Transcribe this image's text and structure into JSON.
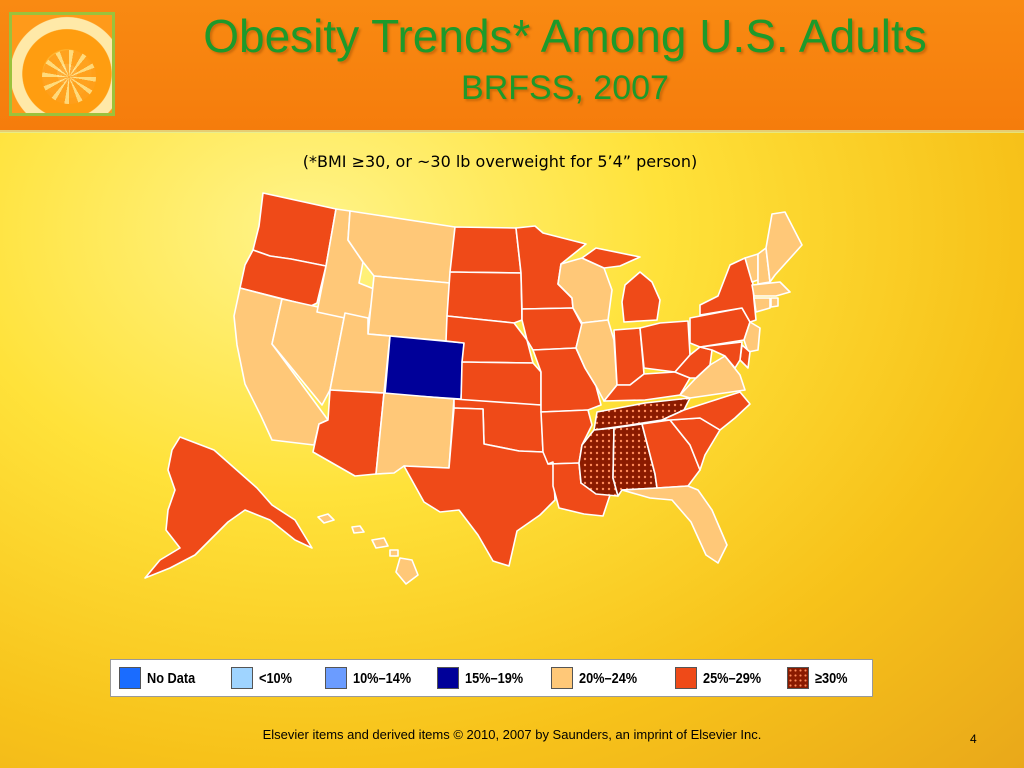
{
  "slide": {
    "title": "Obesity Trends* Among U.S. Adults",
    "subtitle": "BRFSS, 2007",
    "note": "(*BMI ≥30, or ~30 lb overweight for 5’4” person)",
    "footer": "Elsevier items and derived items © 2010, 2007 by Saunders, an imprint of Elsevier Inc.",
    "page_number": "4"
  },
  "colors": {
    "no_data": "#1a6cff",
    "lt10": "#9fd4ff",
    "c10_14": "#6b9cff",
    "c15_19": "#000099",
    "c20_24": "#ffc878",
    "c25_29": "#ef4a18",
    "ge30": "#8a1a00",
    "ge30_dot": "#ff8a5a",
    "border": "#ffffff"
  },
  "legend": [
    {
      "key": "no_data",
      "label": "No Data"
    },
    {
      "key": "lt10",
      "label": "<10%"
    },
    {
      "key": "c10_14",
      "label": "10%–14%"
    },
    {
      "key": "c15_19",
      "label": "15%–19%"
    },
    {
      "key": "c20_24",
      "label": "20%–24%"
    },
    {
      "key": "c25_29",
      "label": "25%–29%"
    },
    {
      "key": "ge30",
      "label": "≥30%"
    }
  ],
  "states": {
    "WA": "c25_29",
    "OR": "c25_29",
    "CA": "c20_24",
    "NV": "c20_24",
    "ID": "c20_24",
    "MT": "c20_24",
    "WY": "c20_24",
    "UT": "c20_24",
    "CO": "c15_19",
    "AZ": "c25_29",
    "NM": "c20_24",
    "ND": "c25_29",
    "SD": "c25_29",
    "NE": "c25_29",
    "KS": "c25_29",
    "OK": "c25_29",
    "TX": "c25_29",
    "MN": "c25_29",
    "IA": "c25_29",
    "MO": "c25_29",
    "AR": "c25_29",
    "LA": "c25_29",
    "WI": "c20_24",
    "IL": "c20_24",
    "MI": "c25_29",
    "IN": "c25_29",
    "OH": "c25_29",
    "KY": "c25_29",
    "TN": "ge30",
    "MS": "ge30",
    "AL": "ge30",
    "GA": "c25_29",
    "FL": "c20_24",
    "SC": "c25_29",
    "NC": "c25_29",
    "VA": "c20_24",
    "WV": "c25_29",
    "PA": "c25_29",
    "NY": "c25_29",
    "ME": "c20_24",
    "NH": "c20_24",
    "VT": "c20_24",
    "MA": "c20_24",
    "RI": "c20_24",
    "CT": "c20_24",
    "NJ": "c20_24",
    "DE": "c25_29",
    "MD": "c25_29",
    "AK": "c25_29",
    "HI": "c20_24"
  }
}
